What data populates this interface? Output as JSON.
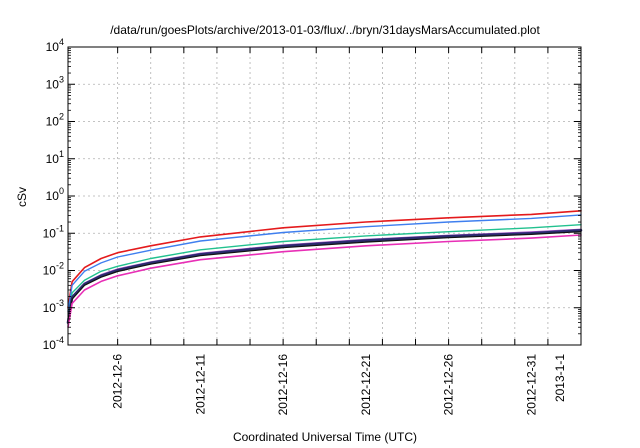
{
  "chart_data": {
    "type": "line",
    "title": "/data/run/goesPlots/archive/2013-01-03/flux/../bryn/31daysMarsAccumulated.plot",
    "xlabel": "Coordinated Universal Time (UTC)",
    "ylabel": "cSv",
    "yscale": "log",
    "ylim": [
      0.0001,
      10000
    ],
    "xlim": [
      "2012-12-03",
      "2013-01-03"
    ],
    "grid": true,
    "legend": "none",
    "y_ticks": [
      {
        "base": "10",
        "exp": "-4",
        "value": 0.0001
      },
      {
        "base": "10",
        "exp": "-3",
        "value": 0.001
      },
      {
        "base": "10",
        "exp": "-2",
        "value": 0.01
      },
      {
        "base": "10",
        "exp": "-1",
        "value": 0.1
      },
      {
        "base": "10",
        "exp": "0",
        "value": 1
      },
      {
        "base": "10",
        "exp": "1",
        "value": 10
      },
      {
        "base": "10",
        "exp": "2",
        "value": 100
      },
      {
        "base": "10",
        "exp": "3",
        "value": 1000
      },
      {
        "base": "10",
        "exp": "4",
        "value": 10000
      }
    ],
    "x_ticks": [
      {
        "date": "2012-12-06",
        "label": "2012-12-6"
      },
      {
        "date": "2012-12-11",
        "label": "2012-12-11"
      },
      {
        "date": "2012-12-16",
        "label": "2012-12-16"
      },
      {
        "date": "2012-12-21",
        "label": "2012-12-21"
      },
      {
        "date": "2012-12-26",
        "label": "2012-12-26"
      },
      {
        "date": "2012-12-31",
        "label": "2012-12-31"
      },
      {
        "date": "2013-01-01",
        "label": "2013-1-1"
      }
    ],
    "x_grid": [
      "2012-12-06",
      "2012-12-08",
      "2012-12-10",
      "2012-12-12",
      "2012-12-14",
      "2012-12-16",
      "2012-12-18",
      "2012-12-20",
      "2012-12-22",
      "2012-12-24",
      "2012-12-26",
      "2012-12-28",
      "2012-12-30",
      "2013-01-01"
    ],
    "series": [
      {
        "color": "#e41a1c",
        "width": 1.6,
        "x": [
          "2012-12-03",
          "2012-12-03T06:00",
          "2012-12-04",
          "2012-12-05",
          "2012-12-06",
          "2012-12-08",
          "2012-12-11",
          "2012-12-16",
          "2012-12-21",
          "2012-12-26",
          "2012-12-31",
          "2013-01-03"
        ],
        "values": [
          0.001,
          0.005,
          0.012,
          0.021,
          0.03,
          0.046,
          0.08,
          0.14,
          0.2,
          0.26,
          0.32,
          0.4
        ]
      },
      {
        "color": "#3f7fef",
        "width": 1.4,
        "x": [
          "2012-12-03",
          "2012-12-03T06:00",
          "2012-12-04",
          "2012-12-05",
          "2012-12-06",
          "2012-12-08",
          "2012-12-11",
          "2012-12-16",
          "2012-12-21",
          "2012-12-26",
          "2012-12-31",
          "2013-01-03"
        ],
        "values": [
          0.0008,
          0.004,
          0.0095,
          0.016,
          0.023,
          0.035,
          0.062,
          0.105,
          0.15,
          0.2,
          0.25,
          0.31
        ]
      },
      {
        "color": "#22c18f",
        "width": 1.4,
        "x": [
          "2012-12-03",
          "2012-12-03T06:00",
          "2012-12-04",
          "2012-12-05",
          "2012-12-06",
          "2012-12-08",
          "2012-12-11",
          "2012-12-16",
          "2012-12-21",
          "2012-12-26",
          "2012-12-31",
          "2013-01-03"
        ],
        "values": [
          0.0005,
          0.0025,
          0.0055,
          0.0095,
          0.013,
          0.021,
          0.036,
          0.06,
          0.085,
          0.11,
          0.14,
          0.17
        ]
      },
      {
        "color": "#a24dc8",
        "width": 1.4,
        "x": [
          "2012-12-03",
          "2012-12-03T06:00",
          "2012-12-04",
          "2012-12-05",
          "2012-12-06",
          "2012-12-08",
          "2012-12-11",
          "2012-12-16",
          "2012-12-21",
          "2012-12-26",
          "2012-12-31",
          "2013-01-03"
        ],
        "values": [
          0.00042,
          0.002,
          0.0046,
          0.0077,
          0.011,
          0.017,
          0.029,
          0.048,
          0.068,
          0.088,
          0.108,
          0.128
        ]
      },
      {
        "color": "#2b2b6e",
        "width": 2.6,
        "x": [
          "2012-12-03",
          "2012-12-03T06:00",
          "2012-12-04",
          "2012-12-05",
          "2012-12-06",
          "2012-12-08",
          "2012-12-11",
          "2012-12-16",
          "2012-12-21",
          "2012-12-26",
          "2012-12-31",
          "2013-01-03"
        ],
        "values": [
          0.0004,
          0.0019,
          0.0043,
          0.0072,
          0.0102,
          0.016,
          0.027,
          0.045,
          0.064,
          0.083,
          0.1,
          0.12
        ]
      },
      {
        "color": "#111111",
        "width": 1.2,
        "x": [
          "2012-12-03",
          "2012-12-03T06:00",
          "2012-12-04",
          "2012-12-05",
          "2012-12-06",
          "2012-12-08",
          "2012-12-11",
          "2012-12-16",
          "2012-12-21",
          "2012-12-26",
          "2012-12-31",
          "2013-01-03"
        ],
        "values": [
          0.00037,
          0.0017,
          0.004,
          0.0066,
          0.0094,
          0.0148,
          0.025,
          0.041,
          0.058,
          0.076,
          0.093,
          0.11
        ]
      },
      {
        "color": "#e82fb6",
        "width": 1.6,
        "x": [
          "2012-12-03",
          "2012-12-03T06:00",
          "2012-12-04",
          "2012-12-05",
          "2012-12-06",
          "2012-12-08",
          "2012-12-11",
          "2012-12-16",
          "2012-12-21",
          "2012-12-26",
          "2012-12-31",
          "2013-01-03"
        ],
        "values": [
          0.0003,
          0.0013,
          0.003,
          0.0051,
          0.0072,
          0.0115,
          0.0195,
          0.032,
          0.046,
          0.06,
          0.074,
          0.09
        ]
      }
    ]
  }
}
